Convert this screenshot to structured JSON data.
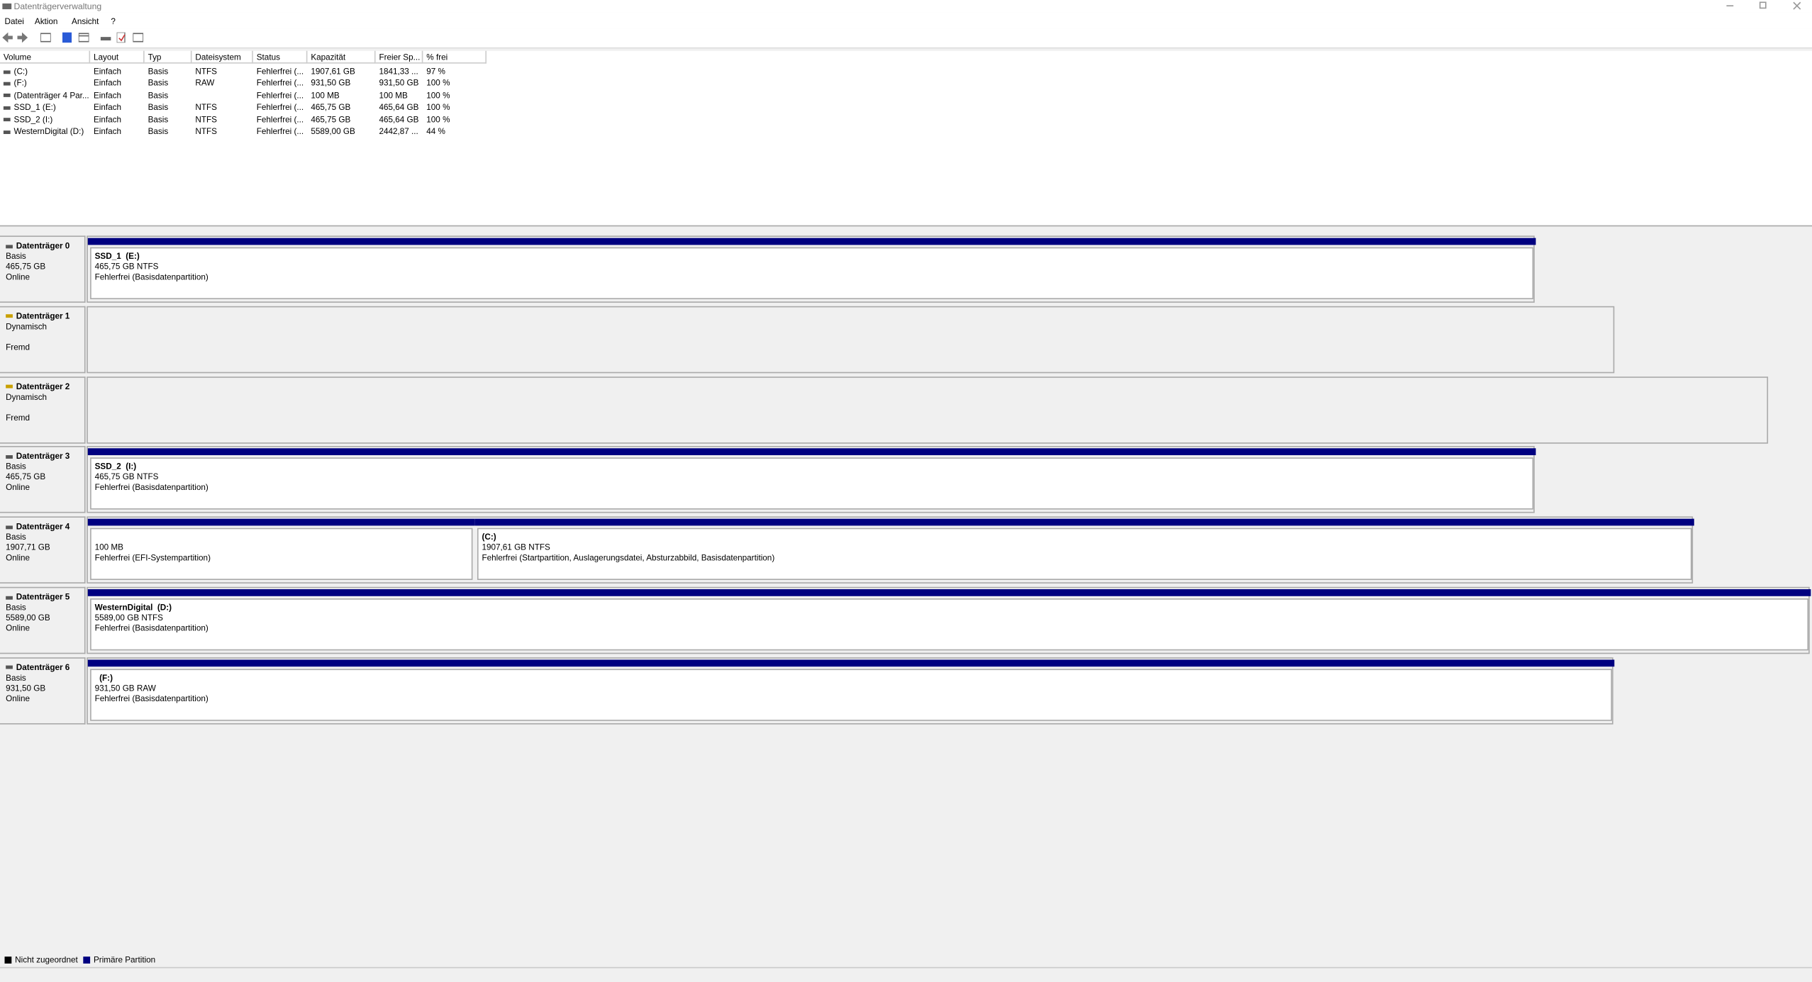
{
  "window": {
    "title": "Datenträgerverwaltung"
  },
  "menu": [
    "Datei",
    "Aktion",
    "Ansicht",
    "?"
  ],
  "table": {
    "columns": [
      "Volume",
      "Layout",
      "Typ",
      "Dateisystem",
      "Status",
      "Kapazität",
      "Freier Sp...",
      "% frei"
    ],
    "rows": [
      [
        "(C:)",
        "Einfach",
        "Basis",
        "NTFS",
        "Fehlerfrei (...",
        "1907,61 GB",
        "1841,33 ...",
        "97 %"
      ],
      [
        "(F:)",
        "Einfach",
        "Basis",
        "RAW",
        "Fehlerfrei (...",
        "931,50 GB",
        "931,50 GB",
        "100 %"
      ],
      [
        "(Datenträger 4 Par...",
        "Einfach",
        "Basis",
        null,
        "Fehlerfrei (...",
        "100 MB",
        "100 MB",
        "100 %"
      ],
      [
        "SSD_1 (E:)",
        "Einfach",
        "Basis",
        "NTFS",
        "Fehlerfrei (...",
        "465,75 GB",
        "465,64 GB",
        "100 %"
      ],
      [
        "SSD_2 (I:)",
        "Einfach",
        "Basis",
        "NTFS",
        "Fehlerfrei (...",
        "465,75 GB",
        "465,64 GB",
        "100 %"
      ],
      [
        "WesternDigital (D:)",
        "Einfach",
        "Basis",
        "NTFS",
        "Fehlerfrei (...",
        "5589,00 GB",
        "2442,87 ...",
        "44 %"
      ]
    ]
  },
  "disks": [
    {
      "name": "Datenträger 0",
      "type": "Basis",
      "size": "465,75 GB",
      "status": "Online",
      "partitions": [
        {
          "title": "SSD_1  (E:)",
          "size": "465,75 GB NTFS",
          "status": "Fehlerfrei (Basisdatenpartition)"
        }
      ]
    },
    {
      "name": "Datenträger 1",
      "type": "Dynamisch",
      "status": "Fremd",
      "partitions": []
    },
    {
      "name": "Datenträger 2",
      "type": "Dynamisch",
      "status": "Fremd",
      "partitions": []
    },
    {
      "name": "Datenträger 3",
      "type": "Basis",
      "size": "465,75 GB",
      "status": "Online",
      "partitions": [
        {
          "title": "SSD_2  (I:)",
          "size": "465,75 GB NTFS",
          "status": "Fehlerfrei (Basisdatenpartition)"
        }
      ]
    },
    {
      "name": "Datenträger 4",
      "type": "Basis",
      "size": "1907,71 GB",
      "status": "Online",
      "partitions": [
        {
          "size": "100 MB",
          "status": "Fehlerfrei (EFI-Systempartition)"
        },
        {
          "title": "(C:)",
          "size": "1907,61 GB NTFS",
          "status": "Fehlerfrei (Startpartition, Auslagerungsdatei, Absturzabbild, Basisdatenpartition)"
        }
      ]
    },
    {
      "name": "Datenträger 5",
      "type": "Basis",
      "size": "5589,00 GB",
      "status": "Online",
      "partitions": [
        {
          "title": "WesternDigital  (D:)",
          "size": "5589,00 GB NTFS",
          "status": "Fehlerfrei (Basisdatenpartition)"
        }
      ]
    },
    {
      "name": "Datenträger 6",
      "type": "Basis",
      "size": "931,50 GB",
      "status": "Online",
      "partitions": [
        {
          "title": "  (F:)",
          "size": "931,50 GB RAW",
          "status": "Fehlerfrei (Basisdatenpartition)"
        }
      ]
    }
  ],
  "legend": [
    "Nicht zugeordnet",
    "Primäre Partition"
  ]
}
